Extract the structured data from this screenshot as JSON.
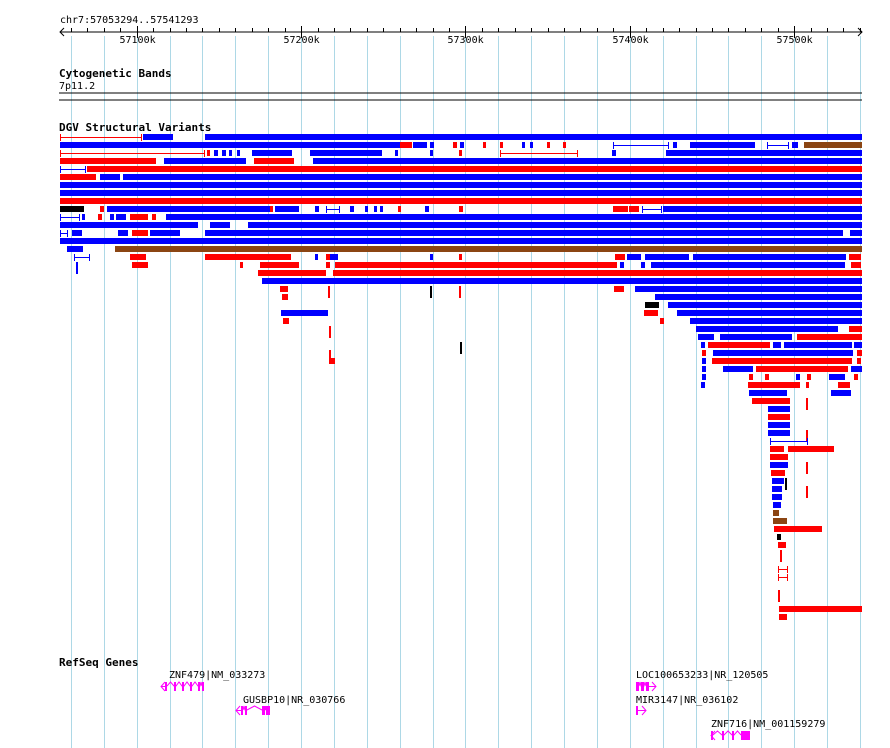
{
  "locus": "chr7:57053294..57541293",
  "ruler": {
    "ticks": [
      {
        "label": "57100k",
        "pos": 57100000
      },
      {
        "label": "57200k",
        "pos": 57200000
      },
      {
        "label": "57300k",
        "pos": 57300000
      },
      {
        "label": "57400k",
        "pos": 57400000
      },
      {
        "label": "57500k",
        "pos": 57500000
      }
    ]
  },
  "tracks": {
    "cytoband": {
      "title": "Cytogenetic Bands",
      "band": "7p11.2"
    },
    "dgv": {
      "title": "DGV Structural Variants"
    },
    "refseq": {
      "title": "RefSeq Genes",
      "genes": [
        {
          "label": "ZNF479|NM_033273"
        },
        {
          "label": "GUSBP10|NR_030766"
        },
        {
          "label": "LOC100653233|NR_120505"
        },
        {
          "label": "MIR3147|NR_036102"
        },
        {
          "label": "ZNF716|NM_001159279"
        }
      ]
    }
  },
  "colors": {
    "gain": "#ff0000",
    "loss": "#0000ff",
    "complex": "#8b4513",
    "inversion": "#000000",
    "gene": "#ff00ff",
    "grid": "#add8e6"
  }
}
